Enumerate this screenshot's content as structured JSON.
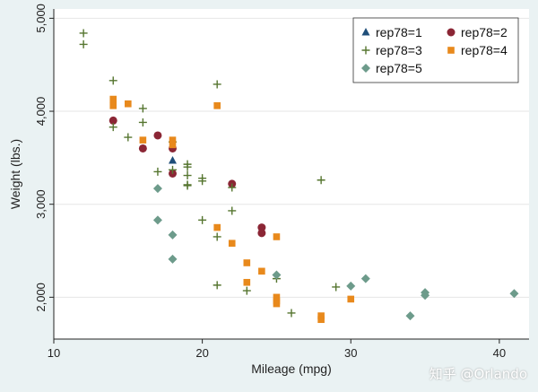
{
  "chart_data": {
    "type": "scatter",
    "xlabel": "Mileage (mpg)",
    "ylabel": "Weight (lbs.)",
    "xlim": [
      10,
      42
    ],
    "ylim": [
      1550,
      5100
    ],
    "xticks": [
      10,
      20,
      30,
      40
    ],
    "xtick_labels": [
      "10",
      "20",
      "30",
      "40"
    ],
    "yticks": [
      2000,
      3000,
      4000,
      5000
    ],
    "ytick_labels": [
      "2,000",
      "3,000",
      "4,000",
      "5,000"
    ],
    "grid": "horizontal",
    "legend_position": "top-right",
    "series": [
      {
        "name": "rep78=1",
        "marker": "triangle",
        "color": "#1f4e79",
        "points": [
          [
            18,
            3470
          ]
        ]
      },
      {
        "name": "rep78=2",
        "marker": "circle",
        "color": "#8b2635",
        "points": [
          [
            14,
            3900
          ],
          [
            16,
            3600
          ],
          [
            17,
            3740
          ],
          [
            18,
            3600
          ],
          [
            18,
            3330
          ],
          [
            22,
            3220
          ],
          [
            24,
            2750
          ],
          [
            24,
            2690
          ]
        ]
      },
      {
        "name": "rep78=3",
        "marker": "plus",
        "color": "#55752f",
        "points": [
          [
            12,
            4840
          ],
          [
            12,
            4720
          ],
          [
            14,
            4330
          ],
          [
            14,
            3830
          ],
          [
            15,
            3720
          ],
          [
            16,
            4030
          ],
          [
            16,
            3880
          ],
          [
            17,
            3350
          ],
          [
            18,
            3670
          ],
          [
            18,
            3370
          ],
          [
            19,
            3430
          ],
          [
            19,
            3400
          ],
          [
            19,
            3310
          ],
          [
            19,
            3210
          ],
          [
            19,
            3200
          ],
          [
            20,
            3280
          ],
          [
            20,
            3250
          ],
          [
            20,
            2830
          ],
          [
            21,
            4290
          ],
          [
            21,
            2650
          ],
          [
            21,
            2130
          ],
          [
            22,
            3180
          ],
          [
            22,
            2930
          ],
          [
            23,
            2070
          ],
          [
            25,
            2200
          ],
          [
            26,
            1830
          ],
          [
            28,
            3260
          ],
          [
            29,
            2110
          ]
        ]
      },
      {
        "name": "rep78=4",
        "marker": "square",
        "color": "#e8891c",
        "points": [
          [
            14,
            4130
          ],
          [
            14,
            4060
          ],
          [
            15,
            4080
          ],
          [
            16,
            3690
          ],
          [
            18,
            3690
          ],
          [
            18,
            3640
          ],
          [
            21,
            4060
          ],
          [
            21,
            2750
          ],
          [
            22,
            2580
          ],
          [
            23,
            2370
          ],
          [
            23,
            2160
          ],
          [
            24,
            2280
          ],
          [
            25,
            2650
          ],
          [
            25,
            2000
          ],
          [
            25,
            1960
          ],
          [
            25,
            1930
          ],
          [
            28,
            1800
          ],
          [
            28,
            1760
          ],
          [
            30,
            1980
          ]
        ]
      },
      {
        "name": "rep78=5",
        "marker": "diamond",
        "color": "#6d9b8b",
        "points": [
          [
            17,
            3170
          ],
          [
            17,
            2830
          ],
          [
            18,
            2670
          ],
          [
            18,
            2410
          ],
          [
            25,
            2240
          ],
          [
            30,
            2120
          ],
          [
            31,
            2200
          ],
          [
            34,
            1800
          ],
          [
            35,
            2050
          ],
          [
            35,
            2020
          ],
          [
            41,
            2040
          ]
        ]
      }
    ]
  },
  "watermark": "知乎 @Orlando",
  "colors": {
    "page_background": "#eaf2f3",
    "plot_background": "#ffffff",
    "gridline": "#e6e6e6"
  }
}
